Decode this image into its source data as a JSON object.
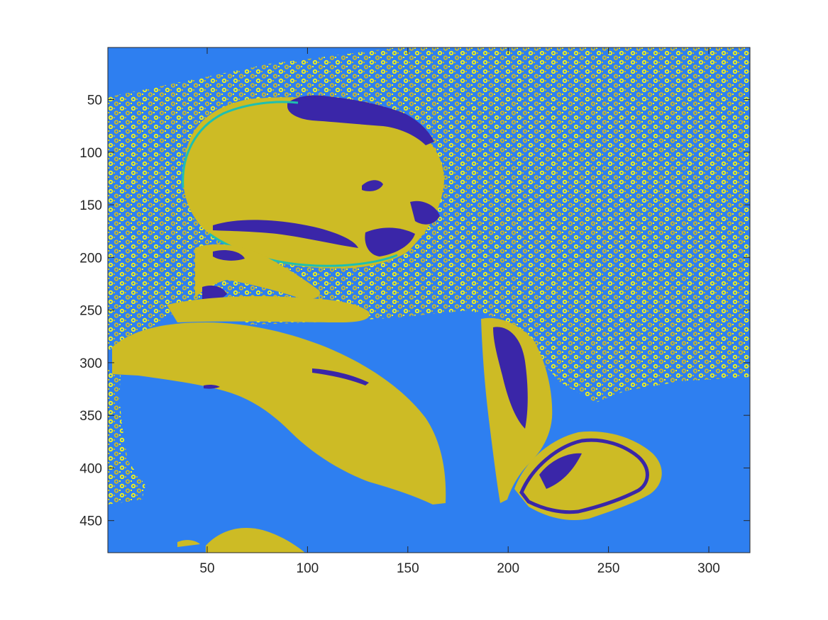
{
  "chart_data": {
    "type": "heatmap",
    "description_kind": "indexed image (imagesc) with 4-level colormap",
    "title": "",
    "xlabel": "",
    "ylabel": "",
    "xlim": [
      0.5,
      320.5
    ],
    "ylim": [
      0.5,
      480.5
    ],
    "y_reversed": true,
    "grid": false,
    "legend": null,
    "x_ticks": [
      50,
      100,
      150,
      200,
      250,
      300
    ],
    "y_ticks": [
      50,
      100,
      150,
      200,
      250,
      300,
      350,
      400,
      450
    ],
    "x_tick_labels": [
      "50",
      "100",
      "150",
      "200",
      "250",
      "300"
    ],
    "y_tick_labels": [
      "50",
      "100",
      "150",
      "200",
      "250",
      "300",
      "350",
      "400",
      "450"
    ],
    "colormap": [
      "#3e26a8",
      "#2e87f5",
      "#24bdad",
      "#cfba22",
      "#f9f90f"
    ],
    "colors": {
      "background_blue": "#2e7ff0",
      "skin_olive": "#cdbb25",
      "dark_purple": "#3a26a8",
      "teal": "#1fbfb0",
      "bright_yellow": "#f5f514",
      "axes": "#262626"
    }
  }
}
